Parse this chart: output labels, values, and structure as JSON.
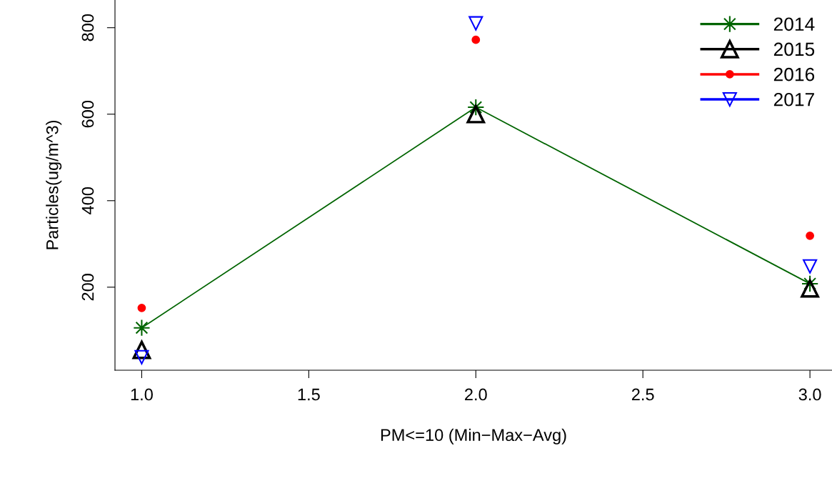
{
  "chart_data": {
    "type": "line",
    "xlabel": "PM<=10 (Min−Max−Avg)",
    "ylabel": "Particles(ug/m^3)",
    "x": [
      1,
      2,
      3
    ],
    "series": [
      {
        "name": "2014",
        "color": "#006400",
        "marker": "cross",
        "values": [
          106,
          616,
          208
        ]
      },
      {
        "name": "2015",
        "type": "scatter",
        "color": "#000000",
        "marker": "triangle",
        "values": [
          55,
          600,
          197
        ]
      },
      {
        "name": "2016",
        "type": "scatter",
        "color": "#ff0000",
        "marker": "circle",
        "values": [
          152,
          772,
          319
        ]
      },
      {
        "name": "2017",
        "type": "scatter",
        "color": "#0000ff",
        "marker": "triangle_down",
        "values": [
          38,
          810,
          248
        ]
      }
    ],
    "xlim": [
      0.92,
      3.066
    ],
    "ylim": [
      8,
      864
    ],
    "xticks": [
      {
        "value": 1,
        "label": "1.0"
      },
      {
        "value": 1.5,
        "label": "1.5"
      },
      {
        "value": 2,
        "label": "2.0"
      },
      {
        "value": 2.5,
        "label": "2.5"
      },
      {
        "value": 3,
        "label": "3.0"
      }
    ],
    "yticks": [
      200,
      400,
      600,
      800
    ],
    "grid": false,
    "legend": "top right"
  }
}
